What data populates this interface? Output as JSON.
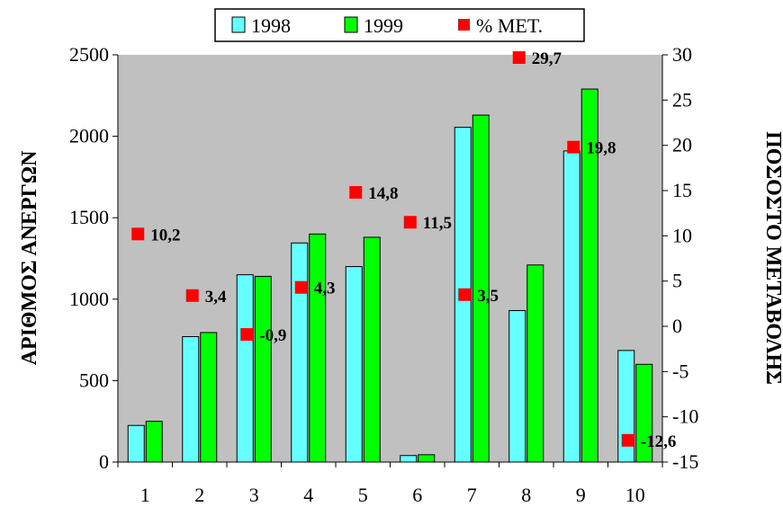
{
  "chart_data": {
    "type": "bar",
    "categories": [
      "1",
      "2",
      "3",
      "4",
      "5",
      "6",
      "7",
      "8",
      "9",
      "10"
    ],
    "series": [
      {
        "name": "1998",
        "values": [
          225,
          770,
          1150,
          1345,
          1200,
          40,
          2055,
          930,
          1910,
          685
        ],
        "axis": "left",
        "color": "#66ffff"
      },
      {
        "name": "1999",
        "values": [
          250,
          795,
          1140,
          1400,
          1380,
          45,
          2130,
          1210,
          2290,
          600
        ],
        "axis": "left",
        "color": "#00ff00"
      },
      {
        "name": "% ΜΕΤ.",
        "values": [
          10.2,
          3.4,
          -0.9,
          4.3,
          14.8,
          11.5,
          3.5,
          29.7,
          19.8,
          -12.6
        ],
        "axis": "right",
        "color": "#ff0000",
        "labels": [
          "10,2",
          "3,4",
          "-0,9",
          "4,3",
          "14,8",
          "11,5",
          "3,5",
          "29,7",
          "19,8",
          "-12,6"
        ]
      }
    ],
    "ylabel": "ΑΡΙΘΜΟΣ ΑΝΕΡΓΩΝ",
    "y2label": "ΠΟΣΟΣΤΟ ΜΕΤΑΒΟΛΗΣ",
    "ylim": [
      0,
      2500
    ],
    "y2lim": [
      -15,
      30
    ],
    "yticks": [
      "0",
      "500",
      "1000",
      "1500",
      "2000",
      "2500"
    ],
    "y2ticks": [
      "-15",
      "-10",
      "-5",
      "0",
      "5",
      "10",
      "15",
      "20",
      "25",
      "30"
    ],
    "plot_background": "#c0c0c0",
    "grid": false,
    "legend_position": "top"
  }
}
